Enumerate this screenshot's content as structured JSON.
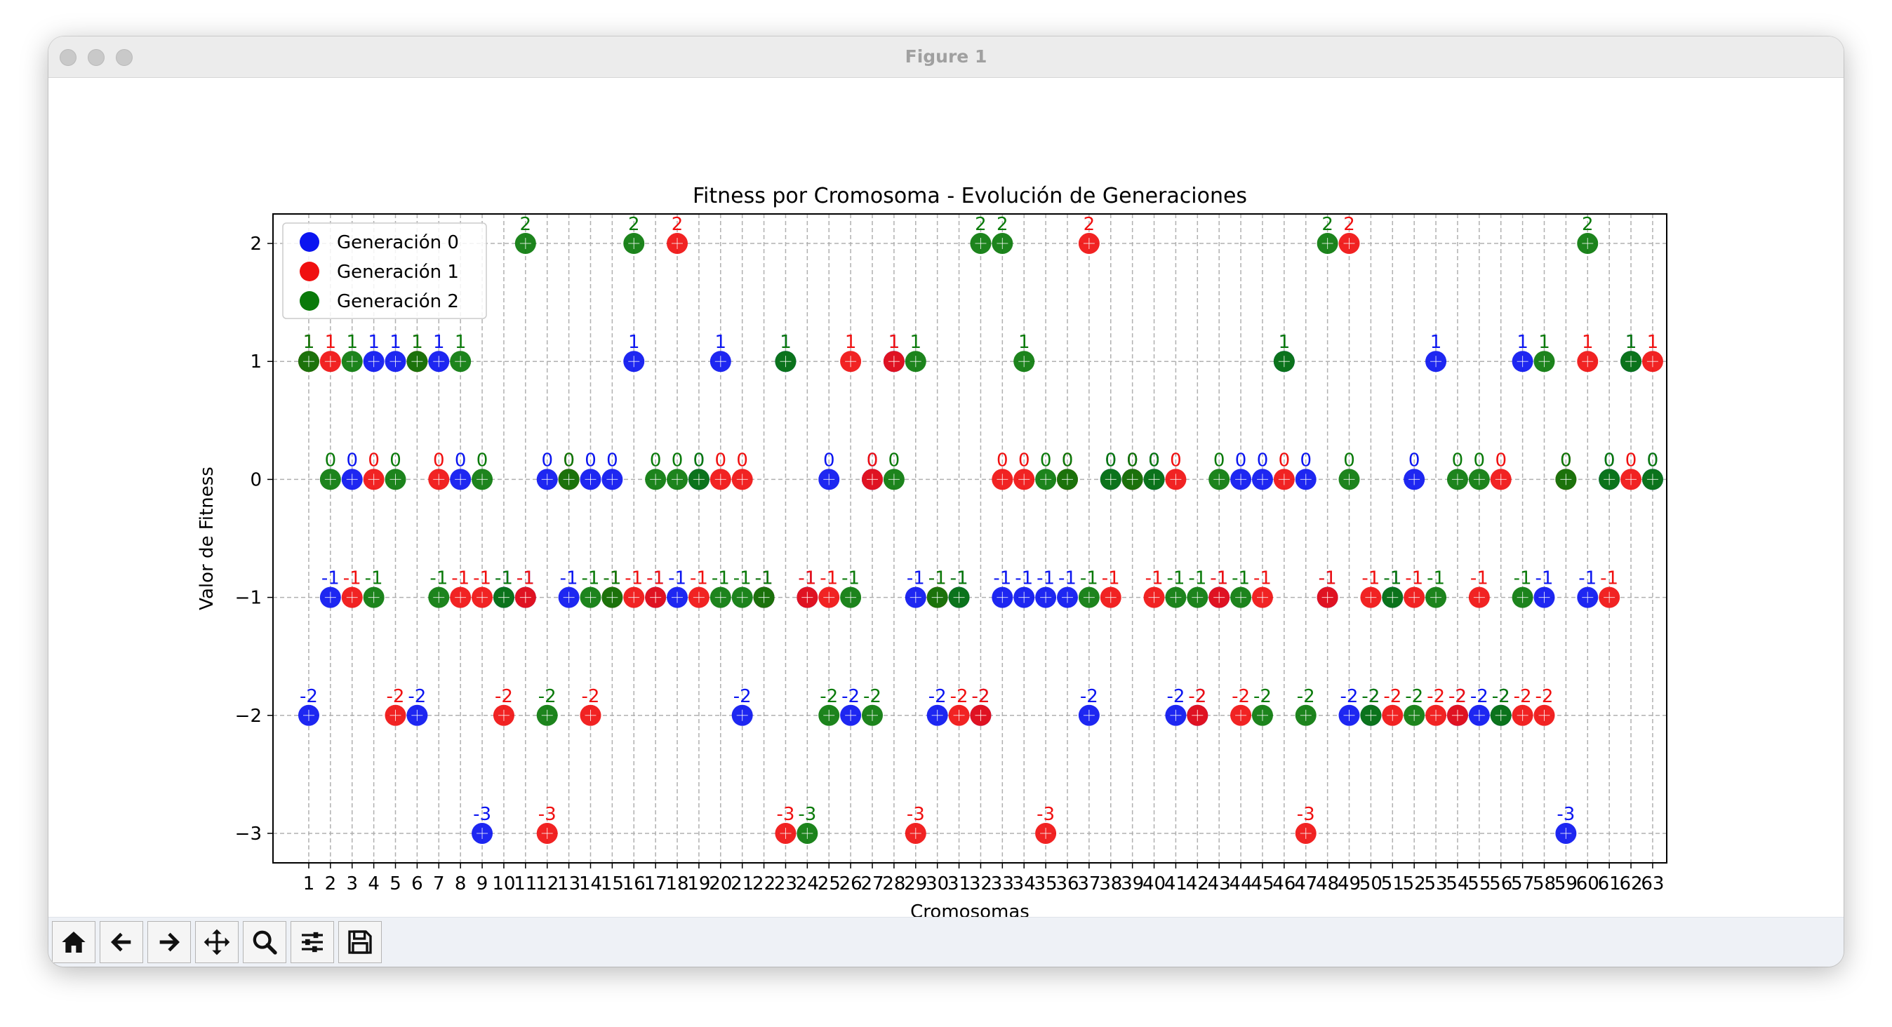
{
  "window": {
    "title": "Figure 1"
  },
  "toolbar": {
    "buttons": [
      {
        "name": "home-button",
        "icon": "home-icon"
      },
      {
        "name": "back-button",
        "icon": "arrow-left-icon"
      },
      {
        "name": "forward-button",
        "icon": "arrow-right-icon"
      },
      {
        "name": "pan-button",
        "icon": "move-icon"
      },
      {
        "name": "zoom-button",
        "icon": "search-icon"
      },
      {
        "name": "configure-subplots-button",
        "icon": "sliders-icon"
      },
      {
        "name": "save-button",
        "icon": "save-icon"
      }
    ]
  },
  "chart_data": {
    "type": "scatter",
    "title": "Fitness por Cromosoma - Evolución de Generaciones",
    "xlabel": "Cromosomas",
    "ylabel": "Valor de Fitness",
    "xlim": [
      -0.65,
      63.65
    ],
    "ylim": [
      -3.25,
      2.25
    ],
    "grid": true,
    "legend_position": "top-left",
    "x": [
      1,
      2,
      3,
      4,
      5,
      6,
      7,
      8,
      9,
      10,
      11,
      12,
      13,
      14,
      15,
      16,
      17,
      18,
      19,
      20,
      21,
      22,
      23,
      24,
      25,
      26,
      27,
      28,
      29,
      30,
      31,
      32,
      33,
      34,
      35,
      36,
      37,
      38,
      39,
      40,
      41,
      42,
      43,
      44,
      45,
      46,
      47,
      48,
      49,
      50,
      51,
      52,
      53,
      54,
      55,
      56,
      57,
      58,
      59,
      60,
      61,
      62,
      63
    ],
    "x_tick_labels": [
      "1",
      "2",
      "3",
      "4",
      "5",
      "6",
      "7",
      "8",
      "9",
      "10",
      "11",
      "12",
      "13",
      "14",
      "15",
      "16",
      "17",
      "18",
      "19",
      "20",
      "21",
      "22",
      "23",
      "24",
      "25",
      "26",
      "27",
      "28",
      "29",
      "30",
      "31",
      "32",
      "33",
      "34",
      "35",
      "36",
      "37",
      "38",
      "39",
      "40",
      "41",
      "42",
      "43",
      "44",
      "45",
      "46",
      "47",
      "48",
      "49",
      "50",
      "51",
      "52",
      "53",
      "54",
      "55",
      "56",
      "57",
      "58",
      "59",
      "60",
      "61",
      "62",
      "63"
    ],
    "y_ticks": [
      2,
      1,
      0,
      -1,
      -2,
      -3
    ],
    "y_tick_labels": [
      "2",
      "1",
      "0",
      "−1",
      "−2",
      "−3"
    ],
    "series": [
      {
        "name": "Generación 0",
        "color": "#0b15f0",
        "values": [
          -2,
          -1,
          0,
          1,
          1,
          -2,
          1,
          0,
          -3,
          -1,
          -1,
          0,
          -1,
          0,
          0,
          1,
          -1,
          -1,
          0,
          1,
          -2,
          -1,
          1,
          -1,
          0,
          -2,
          0,
          1,
          -1,
          -2,
          -1,
          -2,
          -1,
          -1,
          -1,
          -1,
          -2,
          0,
          0,
          0,
          -2,
          -2,
          -1,
          0,
          0,
          1,
          0,
          -1,
          -2,
          -2,
          -1,
          0,
          1,
          -2,
          -2,
          -2,
          1,
          -1,
          -3,
          -1,
          0,
          1,
          0
        ]
      },
      {
        "name": "Generación 1",
        "color": "#f01010",
        "values": [
          1,
          1,
          -1,
          0,
          -2,
          1,
          0,
          -1,
          -1,
          -2,
          -1,
          -3,
          0,
          -2,
          -1,
          -1,
          -1,
          2,
          -1,
          0,
          0,
          -1,
          -3,
          -1,
          -1,
          1,
          0,
          1,
          -3,
          -1,
          -2,
          -2,
          0,
          0,
          -3,
          0,
          2,
          -1,
          0,
          -1,
          0,
          -2,
          -1,
          -2,
          -1,
          0,
          -3,
          -1,
          2,
          -1,
          -2,
          -1,
          -2,
          -2,
          -1,
          0,
          -2,
          -2,
          0,
          1,
          -1,
          0,
          1
        ]
      },
      {
        "name": "Generación 2",
        "color": "#0a7a0a",
        "values": [
          1,
          0,
          1,
          -1,
          0,
          1,
          -1,
          1,
          0,
          -1,
          2,
          -2,
          0,
          -1,
          -1,
          2,
          0,
          0,
          0,
          -1,
          -1,
          -1,
          1,
          -3,
          -2,
          -1,
          -2,
          0,
          1,
          -1,
          -1,
          2,
          2,
          1,
          0,
          0,
          -1,
          0,
          0,
          0,
          -1,
          -1,
          0,
          -1,
          -2,
          1,
          -2,
          2,
          0,
          -2,
          -1,
          -2,
          -1,
          0,
          0,
          -2,
          -1,
          1,
          0,
          2,
          0,
          1,
          0
        ]
      }
    ],
    "value_labels": {
      "gen0": [
        "-2",
        "-1",
        "0",
        "1",
        "1",
        "-2",
        "1",
        "0",
        "-3",
        "-1",
        "-1",
        "0",
        "-1",
        "0",
        "0",
        "1",
        "-1",
        "-1",
        "0",
        "1",
        "-2",
        "-1",
        "1",
        "-1",
        "0",
        "-2",
        "0",
        "1",
        "-1",
        "-2",
        "-1",
        "-2",
        "-1",
        "-1",
        "-1",
        "-1",
        "-2",
        "0",
        "0",
        "0",
        "-2",
        "-2",
        "-1",
        "0",
        "0",
        "1",
        "0",
        "-1",
        "-2",
        "-2",
        "-1",
        "0",
        "1",
        "-2",
        "-2",
        "-2",
        "1",
        "-1",
        "-3",
        "-1",
        "0",
        "1",
        "0"
      ],
      "gen1": [
        "1",
        "1",
        "-1",
        "0",
        "-2",
        "1",
        "0",
        "-1",
        "-1",
        "-2",
        "-1",
        "-3",
        "0",
        "-2",
        "-1",
        "-1",
        "-1",
        "2",
        "-1",
        "0",
        "0",
        "-1",
        "-3",
        "-1",
        "-1",
        "1",
        "0",
        "1",
        "-3",
        "-1",
        "-2",
        "-2",
        "0",
        "0",
        "-3",
        "0",
        "2",
        "-1",
        "0",
        "-1",
        "0",
        "-2",
        "-1",
        "-2",
        "-1",
        "0",
        "-3",
        "-1",
        "2",
        "-1",
        "-2",
        "-1",
        "-2",
        "-2",
        "-1",
        "0",
        "-2",
        "-2",
        "0",
        "1",
        "-1",
        "0",
        "1"
      ],
      "gen2": [
        "1",
        "0",
        "1",
        "-1",
        "0",
        "1",
        "-1",
        "1",
        "0",
        "-1",
        "2",
        "-2",
        "0",
        "-1",
        "-1",
        "2",
        "0",
        "0",
        "0",
        "-1",
        "-1",
        "-1",
        "1",
        "-3",
        "-2",
        "-1",
        "-2",
        "0",
        "1",
        "-1",
        "-1",
        "2",
        "2",
        "1",
        "0",
        "0",
        "-1",
        "0",
        "0",
        "0",
        "-1",
        "-1",
        "0",
        "-1",
        "-2",
        "1",
        "-2",
        "2",
        "0",
        "-2",
        "-1",
        "-2",
        "-1",
        "0",
        "0",
        "-2",
        "-1",
        "1",
        "0",
        "2",
        "0",
        "1",
        "0"
      ]
    }
  }
}
